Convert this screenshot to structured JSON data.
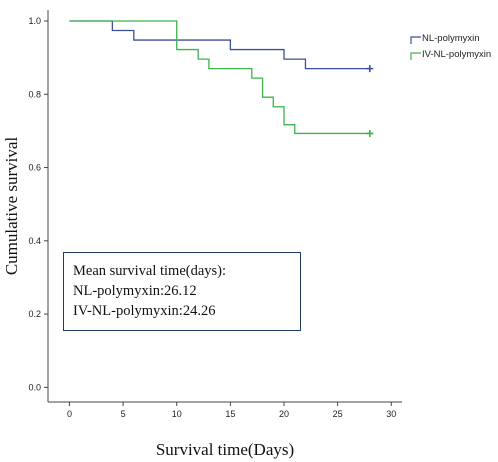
{
  "chart_data": {
    "type": "line",
    "xlabel": "Survival time(Days)",
    "ylabel": "Cumulative survival",
    "xlim": [
      -2,
      31
    ],
    "ylim": [
      -0.04,
      1.03
    ],
    "x_ticks": [
      0,
      5,
      10,
      15,
      20,
      25,
      30
    ],
    "y_ticks": [
      0.0,
      0.2,
      0.4,
      0.6,
      0.8,
      1.0
    ],
    "x_tick_labels": [
      "0",
      "5",
      "10",
      "15",
      "20",
      "25",
      "30"
    ],
    "y_tick_labels": [
      "0.0",
      "0.2",
      "0.4",
      "0.6",
      "0.8",
      "1.0"
    ],
    "step": true,
    "legend_position": "top-right",
    "series": [
      {
        "name": "NL-polymyxin",
        "color": "#3b4f9a",
        "x": [
          0,
          4,
          6,
          10,
          15,
          20,
          22,
          28
        ],
        "y": [
          1.0,
          0.974,
          0.948,
          0.948,
          0.922,
          0.896,
          0.87,
          0.87
        ],
        "censored": [
          [
            28,
            0.87
          ]
        ]
      },
      {
        "name": "IV-NL-polymyxin",
        "color": "#3cb44b",
        "x": [
          0,
          10,
          12,
          13,
          14,
          17,
          18,
          19,
          20,
          21,
          28
        ],
        "y": [
          1.0,
          0.922,
          0.896,
          0.87,
          0.87,
          0.844,
          0.792,
          0.766,
          0.717,
          0.693,
          0.693
        ],
        "censored": [
          [
            28,
            0.693
          ]
        ]
      }
    ],
    "annotation": {
      "lines": [
        "Mean survival time(days):",
        "NL-polymyxin:26.12",
        "IV-NL-polymyxin:24.26"
      ]
    }
  }
}
